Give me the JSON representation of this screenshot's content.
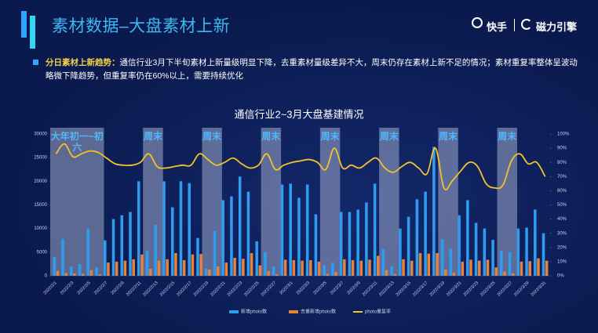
{
  "header": {
    "title": "素材数据–大盘素材上新",
    "logo_left": "快手",
    "logo_right": "磁力引擎",
    "summary_label": "分日素材上新趋势：",
    "summary_text": "通信行业3月下半旬素材上新量级明显下降，去重素材量级差异不大，周末仍存在素材上新不足的情况；素材重复率整体呈波动略微下降趋势，但重复率仍在60%以上，需要持续优化"
  },
  "chart_data": {
    "type": "bar-line",
    "title": "通信行业2~3月大盘基建情况",
    "categories": [
      "2022/2/1",
      null,
      "2022/2/3",
      null,
      "2022/2/5",
      null,
      "2022/2/7",
      null,
      "2022/2/9",
      null,
      "2022/2/11",
      null,
      "2022/2/13",
      null,
      "2022/2/15",
      null,
      "2022/2/17",
      null,
      "2022/2/19",
      null,
      "2022/2/21",
      null,
      "2022/2/23",
      null,
      "2022/2/25",
      null,
      "2022/2/27",
      null,
      "2022/3/1",
      null,
      "2022/3/3",
      null,
      "2022/3/5",
      null,
      "2022/3/7",
      null,
      "2022/3/9",
      null,
      "2022/3/11",
      null,
      "2022/3/13",
      null,
      "2022/3/15",
      null,
      "2022/3/17",
      null,
      "2022/3/19",
      null,
      "2022/3/21",
      null,
      "2022/3/23",
      null,
      "2022/3/25",
      null,
      "2022/3/27",
      null,
      "2022/3/29",
      null,
      "2022/3/31"
    ],
    "series": [
      {
        "name": "新增photo数",
        "color": "#2f9cf0",
        "values": [
          4000,
          7800,
          2000,
          2500,
          10000,
          1800,
          7500,
          12000,
          12800,
          13500,
          20000,
          5300,
          10800,
          20000,
          14500,
          20000,
          19600,
          8000,
          1500,
          9500,
          16000,
          16800,
          21000,
          17800,
          7300,
          5000,
          2000,
          19300,
          19500,
          16500,
          19300,
          13000,
          2300,
          2800,
          13500,
          13500,
          14000,
          15500,
          19500,
          5700,
          2000,
          10000,
          12500,
          16200,
          17800,
          27300,
          7700,
          5700,
          12800,
          16000,
          11200,
          10000,
          7600,
          5300,
          5000,
          10000,
          10200,
          14000,
          9000
        ]
      },
      {
        "name": "去重新增photo数",
        "color": "#e8823a",
        "values": [
          1000,
          600,
          500,
          400,
          1200,
          300,
          2800,
          3000,
          3200,
          3500,
          4500,
          1500,
          3200,
          3500,
          4800,
          3300,
          4500,
          4600,
          1300,
          2000,
          2800,
          3800,
          3600,
          4800,
          2200,
          1000,
          300,
          3400,
          3300,
          3200,
          3300,
          3000,
          400,
          800,
          3500,
          3300,
          3200,
          3400,
          4200,
          1200,
          400,
          3500,
          3200,
          4800,
          4700,
          4800,
          1300,
          700,
          3000,
          3400,
          3200,
          3400,
          1800,
          900,
          500,
          3000,
          3100,
          3700,
          3200
        ]
      },
      {
        "name": "photo重复率",
        "color": "#f3c12e",
        "axis": "y2",
        "values": [
          86,
          93,
          84,
          86,
          88,
          87,
          83,
          79,
          78,
          78,
          80,
          86,
          77,
          76,
          77,
          78,
          78,
          86,
          82,
          78,
          80,
          83,
          79,
          76,
          78,
          86,
          75,
          78,
          80,
          81,
          82,
          80,
          75,
          90,
          76,
          78,
          76,
          80,
          83,
          76,
          73,
          77,
          80,
          76,
          72,
          90,
          62,
          67,
          74,
          80,
          77,
          65,
          62,
          64,
          81,
          86,
          79,
          80,
          70
        ]
      }
    ],
    "annotations": [
      "大年初一~初六",
      "周末",
      "周末",
      "周末",
      "周末",
      "周末",
      "周末",
      "周末"
    ],
    "ylim": [
      0,
      30000
    ],
    "yticks": [
      0,
      5000,
      10000,
      15000,
      20000,
      25000,
      30000
    ],
    "y2lim": [
      0,
      100
    ],
    "y2ticks": [
      {
        "value": 0,
        "label": "0%"
      },
      {
        "value": 10,
        "label": "10%"
      },
      {
        "value": 20,
        "label": "20%"
      },
      {
        "value": 30,
        "label": "30%"
      },
      {
        "value": 40,
        "label": "40%"
      },
      {
        "value": 50,
        "label": "50%"
      },
      {
        "value": 60,
        "label": "60%"
      },
      {
        "value": 70,
        "label": "70%"
      },
      {
        "value": 80,
        "label": "80%"
      },
      {
        "value": 90,
        "label": "90%"
      },
      {
        "value": 100,
        "label": "100%"
      }
    ],
    "legend": "bottom"
  }
}
